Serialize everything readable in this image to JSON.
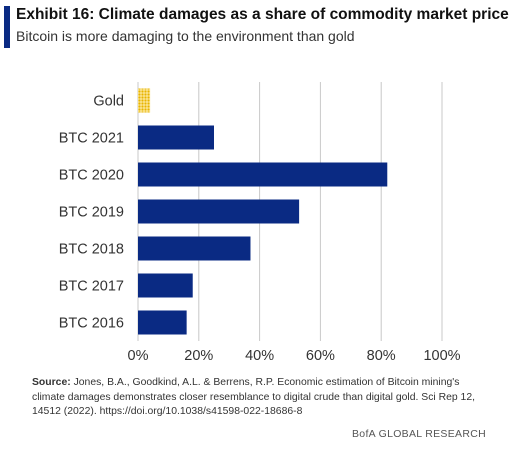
{
  "title": "Exhibit 16: Climate damages as a share of commodity market price",
  "subtitle": "Bitcoin is more damaging to the environment than gold",
  "source": {
    "label": "Source:",
    "text": "Jones, B.A., Goodkind, A.L. & Berrens, R.P. Economic estimation of Bitcoin mining's climate damages demonstrates closer resemblance to digital crude than digital gold. Sci Rep 12, 14512 (2022). https://doi.org/10.1038/s41598-022-18686-8"
  },
  "footer": "BofA GLOBAL RESEARCH",
  "colors": {
    "accent": "#0a2a83",
    "bar": "#0a2a83",
    "gold": "#f5c518",
    "grid": "#c8c8c8"
  },
  "chart_data": {
    "type": "bar",
    "orientation": "horizontal",
    "categories": [
      "Gold",
      "BTC 2021",
      "BTC 2020",
      "BTC 2019",
      "BTC 2018",
      "BTC 2017",
      "BTC 2016"
    ],
    "values": [
      4,
      25,
      82,
      53,
      37,
      18,
      16
    ],
    "unit": "%",
    "xlim": [
      0,
      100
    ],
    "xticks": [
      0,
      20,
      40,
      60,
      80,
      100
    ],
    "xtick_labels": [
      "0%",
      "20%",
      "40%",
      "60%",
      "80%",
      "100%"
    ],
    "grid": "vertical",
    "bar_colors": [
      "#f5c518",
      "#0a2a83",
      "#0a2a83",
      "#0a2a83",
      "#0a2a83",
      "#0a2a83",
      "#0a2a83"
    ],
    "bar_patterns": [
      "dotted",
      "solid",
      "solid",
      "solid",
      "solid",
      "solid",
      "solid"
    ]
  }
}
